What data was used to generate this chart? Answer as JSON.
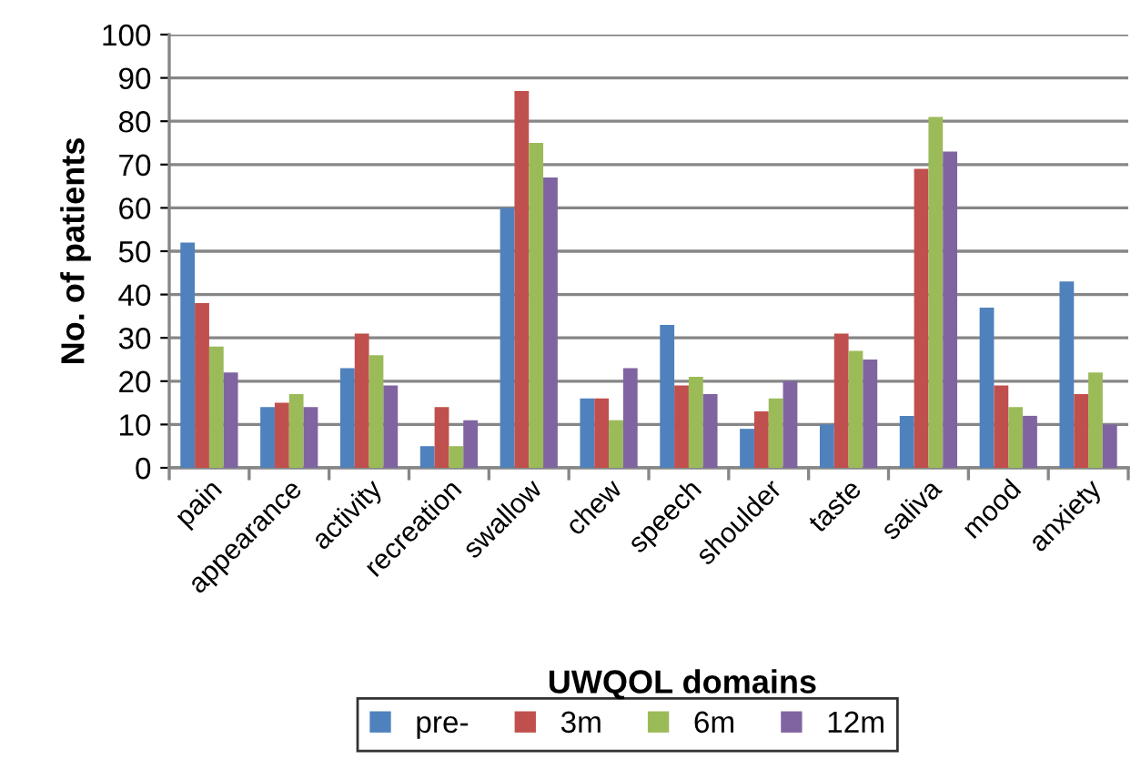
{
  "chart_data": {
    "type": "bar",
    "xlabel": "UWQOL domains",
    "ylabel": "No. of patients",
    "categories": [
      "pain",
      "appearance",
      "activity",
      "recreation",
      "swallow",
      "chew",
      "speech",
      "shoulder",
      "taste",
      "saliva",
      "mood",
      "anxiety"
    ],
    "series": [
      {
        "name": "pre-",
        "color": "#4f81bd",
        "values": [
          52,
          14,
          23,
          5,
          60,
          16,
          33,
          9,
          10,
          12,
          37,
          43
        ]
      },
      {
        "name": "3m",
        "color": "#c0504d",
        "values": [
          38,
          15,
          31,
          14,
          87,
          16,
          19,
          13,
          31,
          69,
          19,
          17
        ]
      },
      {
        "name": "6m",
        "color": "#9bbb59",
        "values": [
          28,
          17,
          26,
          5,
          75,
          11,
          21,
          16,
          27,
          81,
          14,
          22
        ]
      },
      {
        "name": "12m",
        "color": "#8064a2",
        "values": [
          22,
          14,
          19,
          11,
          67,
          23,
          17,
          20,
          25,
          73,
          12,
          10
        ]
      }
    ],
    "ylim": [
      0,
      100
    ],
    "yticks": [
      0,
      10,
      20,
      30,
      40,
      50,
      60,
      70,
      80,
      90,
      100
    ],
    "grid": "y",
    "legend": "bottom"
  }
}
